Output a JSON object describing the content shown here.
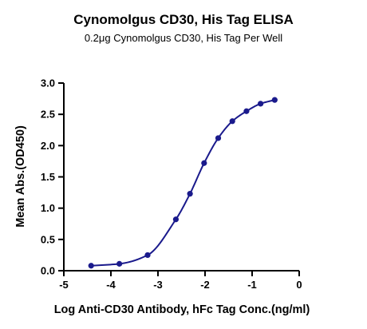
{
  "chart_data": {
    "type": "scatter",
    "title": "Cynomolgus CD30, His Tag ELISA",
    "subtitle": "0.2μg Cynomolgus CD30, His Tag Per Well",
    "xlabel": "Log Anti-CD30 Antibody, hFc Tag Conc.(ng/ml)",
    "ylabel": "Mean Abs.(OD450)",
    "xlim": [
      -5,
      0
    ],
    "ylim": [
      0,
      3
    ],
    "xticks": [
      "-5",
      "-4",
      "-3",
      "-2",
      "-1",
      "0"
    ],
    "yticks": [
      "0.0",
      "0.5",
      "1.0",
      "1.5",
      "2.0",
      "2.5",
      "3.0"
    ],
    "grid": false,
    "fit_curve": true,
    "color": "#1a1a8c",
    "series": [
      {
        "x": [
          -4.42,
          -3.82,
          -3.22,
          -2.62,
          -2.32,
          -2.02,
          -1.72,
          -1.42,
          -1.12,
          -0.82,
          -0.52
        ],
        "y": [
          0.08,
          0.11,
          0.25,
          0.82,
          1.23,
          1.72,
          2.12,
          2.39,
          2.55,
          2.67,
          2.73
        ]
      }
    ]
  }
}
